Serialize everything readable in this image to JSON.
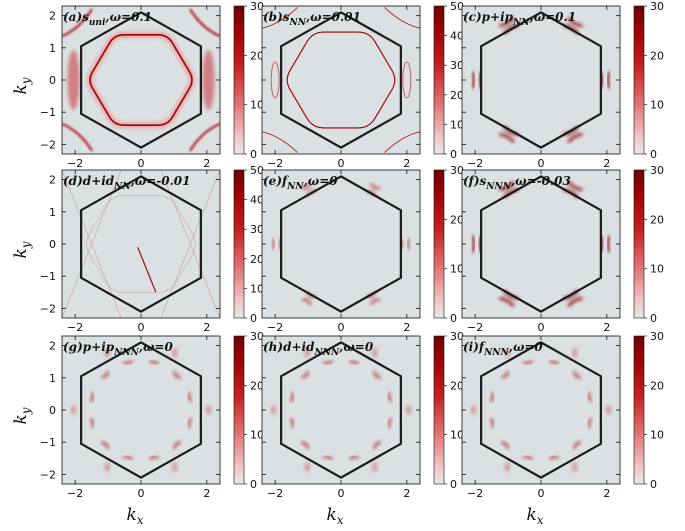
{
  "figure": {
    "x_axis_label": "k",
    "x_axis_label_sub": "x",
    "y_axis_label": "k",
    "y_axis_label_sub": "y"
  },
  "colors": {
    "background": "#dbe0e3",
    "accent": "#8b0000",
    "hexagon": "#1a1a1a"
  },
  "chart_data": [
    {
      "type": "heatmap",
      "panel": "a",
      "title_main": "(a)s",
      "title_sub": "uni",
      "title_tail": ",ω=0.1",
      "xlim": [
        -2.4,
        2.4
      ],
      "ylim": [
        -2.3,
        2.3
      ],
      "x_ticks": [
        -2,
        0,
        2
      ],
      "y_ticks": [
        2,
        1,
        0,
        -1,
        -2
      ],
      "colorbar": {
        "min": 0,
        "max": 30,
        "ticks": [
          30,
          20,
          10,
          0
        ]
      },
      "feature": "fermi_surface_rounded_hexagon"
    },
    {
      "type": "heatmap",
      "panel": "b",
      "title_main": "(b)s",
      "title_sub": "NN",
      "title_tail": ",ω=0.01",
      "xlim": [
        -2.4,
        2.4
      ],
      "ylim": [
        -2.3,
        2.3
      ],
      "x_ticks": [
        -2,
        0,
        2
      ],
      "y_ticks": [
        2,
        1,
        0,
        -1,
        -2
      ],
      "colorbar": {
        "min": 0,
        "max": 50,
        "ticks": [
          50,
          40,
          30,
          20,
          10,
          0
        ]
      },
      "feature": "thin_fermi_surface"
    },
    {
      "type": "heatmap",
      "panel": "c",
      "title_main": "(c)p+ip",
      "title_sub": "NN",
      "title_tail": ",ω=0.1",
      "xlim": [
        -2.4,
        2.4
      ],
      "ylim": [
        -2.3,
        2.3
      ],
      "x_ticks": [
        -2,
        0,
        2
      ],
      "y_ticks": [
        2,
        1,
        0,
        -1,
        -2
      ],
      "colorbar": {
        "min": 0,
        "max": 30,
        "ticks": [
          30,
          20,
          10,
          0
        ]
      },
      "feature": "six_arc_pairs"
    },
    {
      "type": "heatmap",
      "panel": "d",
      "title_main": "(d)d+id",
      "title_sub": "NN",
      "title_tail": ",ω=-0.01",
      "xlim": [
        -2.4,
        2.4
      ],
      "ylim": [
        -2.3,
        2.3
      ],
      "x_ticks": [
        -2,
        0,
        2
      ],
      "y_ticks": [
        2,
        1,
        0,
        -1,
        -2
      ],
      "colorbar": {
        "min": 0,
        "max": 50,
        "ticks": [
          50,
          40,
          30,
          20,
          10,
          0
        ]
      },
      "feature": "faint_lines"
    },
    {
      "type": "heatmap",
      "panel": "e",
      "title_main": "(e)f",
      "title_sub": "NN",
      "title_tail": ",ω=0",
      "xlim": [
        -2.4,
        2.4
      ],
      "ylim": [
        -2.3,
        2.3
      ],
      "x_ticks": [
        -2,
        0,
        2
      ],
      "y_ticks": [
        2,
        1,
        0,
        -1,
        -2
      ],
      "colorbar": {
        "min": 0,
        "max": 30,
        "ticks": [
          30,
          20,
          10,
          0
        ]
      },
      "feature": "six_small_arc_pairs"
    },
    {
      "type": "heatmap",
      "panel": "f",
      "title_main": "(f)s",
      "title_sub": "NNN",
      "title_tail": ",ω=-0.03",
      "xlim": [
        -2.4,
        2.4
      ],
      "ylim": [
        -2.3,
        2.3
      ],
      "x_ticks": [
        -2,
        0,
        2
      ],
      "y_ticks": [
        2,
        1,
        0,
        -1,
        -2
      ],
      "colorbar": {
        "min": 0,
        "max": 30,
        "ticks": [
          30,
          20,
          10,
          0
        ]
      },
      "feature": "six_arc_pairs"
    },
    {
      "type": "heatmap",
      "panel": "g",
      "title_main": "(g)p+ip",
      "title_sub": "NNN",
      "title_tail": ",ω=0",
      "xlim": [
        -2.4,
        2.4
      ],
      "ylim": [
        -2.3,
        2.3
      ],
      "x_ticks": [
        -2,
        0,
        2
      ],
      "y_ticks": [
        2,
        1,
        0,
        -1,
        -2
      ],
      "colorbar": {
        "min": 0,
        "max": 30,
        "ticks": [
          30,
          20,
          10,
          0
        ]
      },
      "feature": "twelve_small_arcs"
    },
    {
      "type": "heatmap",
      "panel": "h",
      "title_main": "(h)d+id",
      "title_sub": "NNN",
      "title_tail": ",ω=0",
      "xlim": [
        -2.4,
        2.4
      ],
      "ylim": [
        -2.3,
        2.3
      ],
      "x_ticks": [
        -2,
        0,
        2
      ],
      "y_ticks": [
        2,
        1,
        0,
        -1,
        -2
      ],
      "colorbar": {
        "min": 0,
        "max": 30,
        "ticks": [
          30,
          20,
          10,
          0
        ]
      },
      "feature": "twelve_small_arcs"
    },
    {
      "type": "heatmap",
      "panel": "i",
      "title_main": "(i)f",
      "title_sub": "NNN",
      "title_tail": ",ω=0",
      "xlim": [
        -2.4,
        2.4
      ],
      "ylim": [
        -2.3,
        2.3
      ],
      "x_ticks": [
        -2,
        0,
        2
      ],
      "y_ticks": [
        2,
        1,
        0,
        -1,
        -2
      ],
      "colorbar": {
        "min": 0,
        "max": 30,
        "ticks": [
          30,
          20,
          10,
          0
        ]
      },
      "feature": "twelve_small_arcs"
    }
  ]
}
